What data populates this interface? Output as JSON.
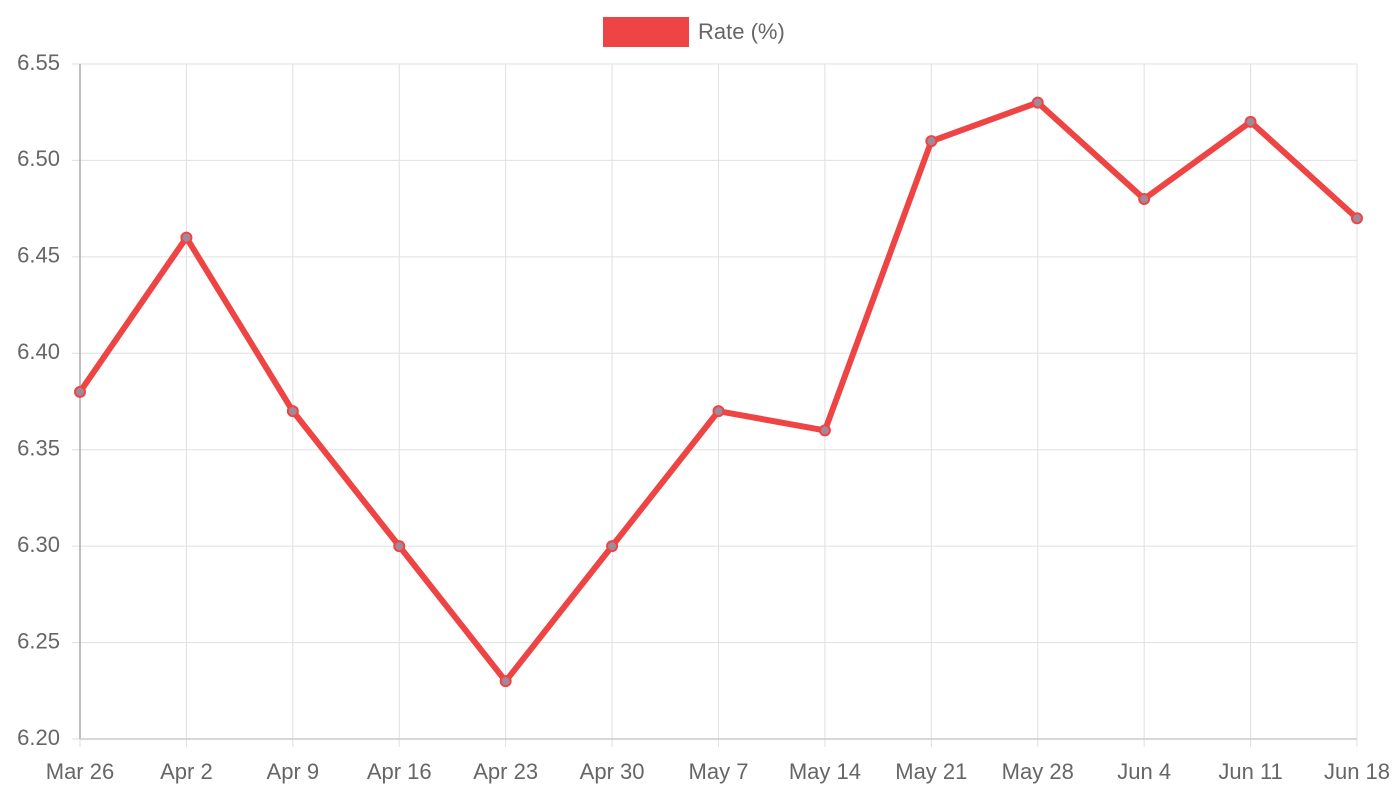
{
  "chart_data": {
    "type": "line",
    "categories": [
      "Mar 26",
      "Apr 2",
      "Apr 9",
      "Apr 16",
      "Apr 23",
      "Apr 30",
      "May 7",
      "May 14",
      "May 21",
      "May 28",
      "Jun 4",
      "Jun 11",
      "Jun 18"
    ],
    "series": [
      {
        "name": "Rate (%)",
        "color": "#ef4444",
        "values": [
          6.38,
          6.46,
          6.37,
          6.3,
          6.23,
          6.3,
          6.37,
          6.36,
          6.51,
          6.53,
          6.48,
          6.52,
          6.47
        ]
      }
    ],
    "ylim": [
      6.2,
      6.55
    ],
    "yticks": [
      {
        "value": 6.2,
        "label": "6.20"
      },
      6.25,
      {
        "value": 6.3,
        "label": "6.30"
      },
      6.35,
      {
        "value": 6.4,
        "label": "6.40"
      },
      6.45,
      {
        "value": 6.5,
        "label": "6.50"
      },
      6.55
    ],
    "grid": true,
    "legend": "top"
  }
}
